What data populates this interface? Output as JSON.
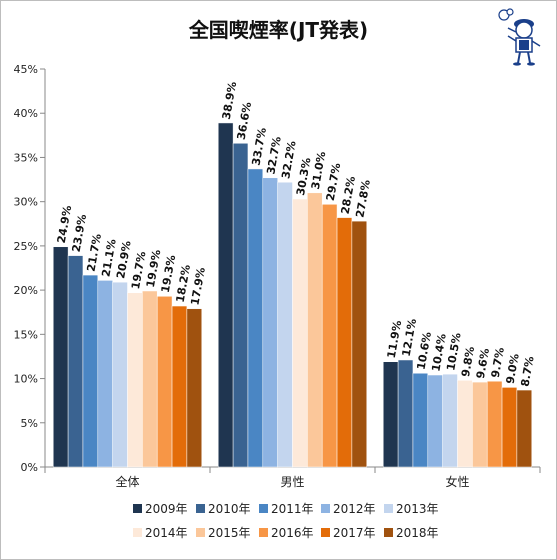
{
  "chart_data": {
    "type": "bar",
    "title": "全国喫煙率(JT発表)",
    "xlabel": "",
    "ylabel": "",
    "ylim": [
      0,
      45
    ],
    "yticks": [
      "0%",
      "5%",
      "10%",
      "15%",
      "20%",
      "25%",
      "30%",
      "35%",
      "40%",
      "45%"
    ],
    "categories": [
      "全体",
      "男性",
      "女性"
    ],
    "grid": false,
    "legend_position": "bottom",
    "series": [
      {
        "name": "2009年",
        "color": "#1f3550",
        "values": [
          24.9,
          38.9,
          11.9
        ],
        "labels": [
          "24.9%",
          "38.9%",
          "11.9%"
        ]
      },
      {
        "name": "2010年",
        "color": "#3a6391",
        "values": [
          23.9,
          36.6,
          12.1
        ],
        "labels": [
          "23.9%",
          "36.6%",
          "12.1%"
        ]
      },
      {
        "name": "2011年",
        "color": "#4a86c4",
        "values": [
          21.7,
          33.7,
          10.6
        ],
        "labels": [
          "21.7%",
          "33.7%",
          "10.6%"
        ]
      },
      {
        "name": "2012年",
        "color": "#8db3e2",
        "values": [
          21.1,
          32.7,
          10.4
        ],
        "labels": [
          "21.1%",
          "32.7%",
          "10.4%"
        ]
      },
      {
        "name": "2013年",
        "color": "#c3d5ee",
        "values": [
          20.9,
          32.2,
          10.5
        ],
        "labels": [
          "20.9%",
          "32.2%",
          "10.5%"
        ]
      },
      {
        "name": "2014年",
        "color": "#fde9d9",
        "values": [
          19.7,
          30.3,
          9.8
        ],
        "labels": [
          "19.7%",
          "30.3%",
          "9.8%"
        ]
      },
      {
        "name": "2015年",
        "color": "#fbc79a",
        "values": [
          19.9,
          31.0,
          9.6
        ],
        "labels": [
          "19.9%",
          "31.0%",
          "9.6%"
        ]
      },
      {
        "name": "2016年",
        "color": "#f79646",
        "values": [
          19.3,
          29.7,
          9.7
        ],
        "labels": [
          "19.3%",
          "29.7%",
          "9.7%"
        ]
      },
      {
        "name": "2017年",
        "color": "#e36c09",
        "values": [
          18.2,
          28.2,
          9.0
        ],
        "labels": [
          "18.2%",
          "28.2%",
          "9.0%"
        ]
      },
      {
        "name": "2018年",
        "color": "#a0520f",
        "values": [
          17.9,
          27.8,
          8.7
        ],
        "labels": [
          "17.9%",
          "27.8%",
          "8.7%"
        ]
      }
    ]
  },
  "mascot": {
    "icon": "smoking-person-icon"
  }
}
